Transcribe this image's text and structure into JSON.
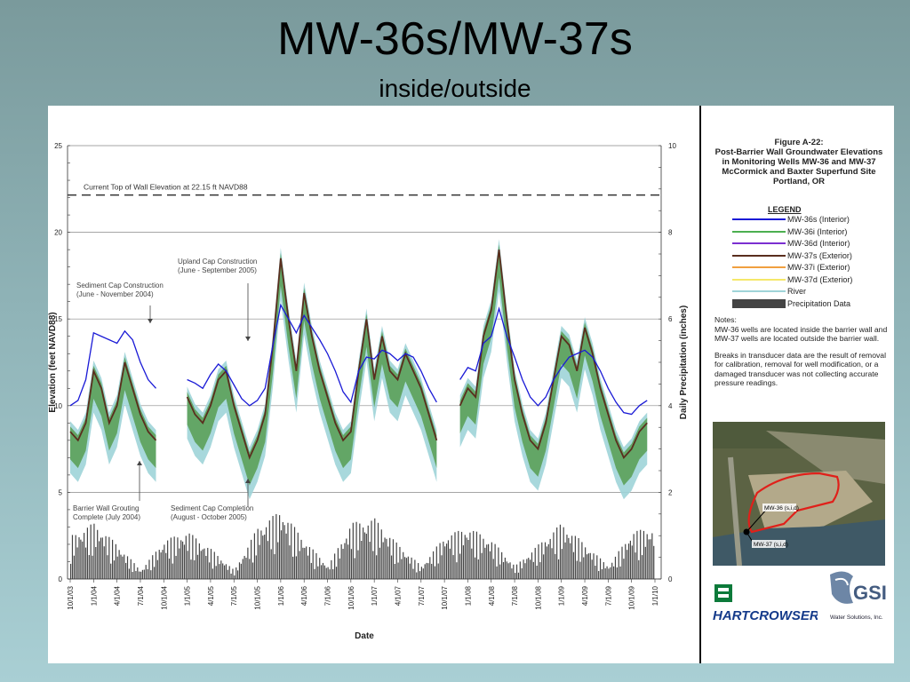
{
  "slide": {
    "title": "MW-36s/MW-37s",
    "subtitle": "inside/outside"
  },
  "figure": {
    "title_lines": [
      "Figure A-22:",
      "Post-Barrier Wall Groundwater Elevations",
      "in Monitoring Wells MW-36 and MW-37",
      "McCormick and Baxter Superfund Site",
      "Portland, OR"
    ],
    "legend_title": "LEGEND",
    "legend": [
      {
        "label": "MW-36s (Interior)",
        "color": "#1a1ad6"
      },
      {
        "label": "MW-36i (Interior)",
        "color": "#4caf50"
      },
      {
        "label": "MW-36d  (Interior)",
        "color": "#7b2fd1"
      },
      {
        "label": "MW-37s (Exterior)",
        "color": "#5a2e1e"
      },
      {
        "label": "MW-37i (Exterior)",
        "color": "#f0a040"
      },
      {
        "label": "MW-37d (Exterior)",
        "color": "#f5e86a"
      },
      {
        "label": "River",
        "color": "#9fd4d8"
      },
      {
        "label": "Precipitation Data",
        "color": "#444444"
      }
    ],
    "notes_title": "Notes:",
    "notes": [
      "MW-36 wells are located inside the barrier wall and MW-37 wells are located outside the barrier wall.",
      "Breaks in transducer data are the result of removal for calibration, removal for well modification, or a damaged transducer was not collecting accurate pressure readings."
    ],
    "map_labels": {
      "mw36": "MW-36 (s,i,d)",
      "mw37": "MW-37 (s,i,d)"
    },
    "logos": {
      "hartcrowser": "HARTCROWSER",
      "gsi_name": "GSI",
      "gsi_tag": "Water Solutions, Inc."
    }
  },
  "chart_data": {
    "type": "line",
    "xlabel": "Date",
    "ylabel": "Elevation (feet NAVD88)",
    "y2label": "Daily Precipitation (inches)",
    "ylim": [
      0,
      25
    ],
    "y2lim": [
      0,
      10
    ],
    "yticks": [
      0,
      5,
      10,
      15,
      20,
      25
    ],
    "y2ticks": [
      0,
      2,
      4,
      6,
      8,
      10
    ],
    "x_tick_labels": [
      "10/1/03",
      "1/1/04",
      "4/1/04",
      "7/1/04",
      "10/1/04",
      "1/1/05",
      "4/1/05",
      "7/1/05",
      "10/1/05",
      "1/1/06",
      "4/1/06",
      "7/1/06",
      "10/1/06",
      "1/1/07",
      "4/1/07",
      "7/1/07",
      "10/1/07",
      "1/1/08",
      "4/1/08",
      "7/1/08",
      "10/1/08",
      "1/1/09",
      "4/1/09",
      "7/1/09",
      "10/1/09",
      "1/1/10"
    ],
    "grid": "horizontal",
    "reference_line": {
      "value": 22.15,
      "label": "Current Top of Wall Elevation at 22.15 ft NAVD88"
    },
    "annotations": [
      {
        "lines": [
          "Sediment Cap Construction",
          "(June - November 2004)"
        ]
      },
      {
        "lines": [
          "Upland Cap Construction",
          "(June - September 2005)"
        ]
      },
      {
        "lines": [
          "Barrier Wall Grouting",
          "Complete (July 2004)"
        ]
      },
      {
        "lines": [
          "Sediment Cap Completion",
          "(August - October 2005)"
        ]
      }
    ],
    "series": [
      {
        "name": "MW-36s (Interior)",
        "x": [
          "10/1/03",
          "11/1/03",
          "12/1/03",
          "1/1/04",
          "2/1/04",
          "3/1/04",
          "4/1/04",
          "5/1/04",
          "6/1/04",
          "7/1/04",
          "8/1/04",
          "9/1/04",
          "10/1/04",
          "11/1/04",
          "12/1/04",
          "1/1/05",
          "2/1/05",
          "3/1/05",
          "4/1/05",
          "5/1/05",
          "6/1/05",
          "7/1/05",
          "8/1/05",
          "9/1/05",
          "10/1/05",
          "11/1/05",
          "12/1/05",
          "1/1/06",
          "2/1/06",
          "3/1/06",
          "4/1/06",
          "5/1/06",
          "6/1/06",
          "7/1/06",
          "8/1/06",
          "9/1/06",
          "10/1/06",
          "11/1/06",
          "12/1/06",
          "1/1/07",
          "2/1/07",
          "3/1/07",
          "4/1/07",
          "5/1/07",
          "6/1/07",
          "7/1/07",
          "8/1/07",
          "9/1/07",
          "10/1/07",
          "11/1/07",
          "12/1/07",
          "1/1/08",
          "2/1/08",
          "3/1/08",
          "4/1/08",
          "5/1/08",
          "6/1/08",
          "7/1/08",
          "8/1/08",
          "9/1/08",
          "10/1/08",
          "11/1/08",
          "12/1/08",
          "1/1/09",
          "2/1/09",
          "3/1/09",
          "4/1/09",
          "5/1/09",
          "6/1/09",
          "7/1/09",
          "8/1/09",
          "9/1/09",
          "10/1/09",
          "11/1/09",
          "12/1/09",
          "1/1/10"
        ],
        "values": [
          10,
          10.3,
          11.5,
          14.2,
          14.0,
          13.8,
          13.6,
          14.3,
          13.8,
          12.5,
          11.5,
          11.0,
          null,
          null,
          null,
          11.5,
          11.3,
          11.0,
          11.8,
          12.4,
          12.0,
          11.2,
          10.4,
          10.0,
          10.3,
          11.0,
          13.5,
          15.8,
          15.0,
          14.2,
          15.2,
          14.5,
          13.8,
          13.0,
          12.0,
          10.8,
          10.2,
          12.0,
          12.8,
          12.7,
          13.2,
          13.0,
          12.6,
          13.0,
          12.8,
          12.0,
          11.0,
          10.2,
          null,
          null,
          11.5,
          12.2,
          12.0,
          13.6,
          14.0,
          15.6,
          14.0,
          12.8,
          11.5,
          10.5,
          10.0,
          10.5,
          11.5,
          12.2,
          12.8,
          13.0,
          13.2,
          12.8,
          12.0,
          11.0,
          10.2,
          9.6,
          9.5,
          10.0,
          10.3,
          null
        ]
      },
      {
        "name": "MW-37s (Exterior)",
        "x": [
          "10/1/03",
          "11/1/03",
          "12/1/03",
          "1/1/04",
          "2/1/04",
          "3/1/04",
          "4/1/04",
          "5/1/04",
          "6/1/04",
          "7/1/04",
          "8/1/04",
          "9/1/04",
          "10/1/04",
          "11/1/04",
          "12/1/04",
          "1/1/05",
          "2/1/05",
          "3/1/05",
          "4/1/05",
          "5/1/05",
          "6/1/05",
          "7/1/05",
          "8/1/05",
          "9/1/05",
          "10/1/05",
          "11/1/05",
          "12/1/05",
          "1/1/06",
          "2/1/06",
          "3/1/06",
          "4/1/06",
          "5/1/06",
          "6/1/06",
          "7/1/06",
          "8/1/06",
          "9/1/06",
          "10/1/06",
          "11/1/06",
          "12/1/06",
          "1/1/07",
          "2/1/07",
          "3/1/07",
          "4/1/07",
          "5/1/07",
          "6/1/07",
          "7/1/07",
          "8/1/07",
          "9/1/07",
          "10/1/07",
          "11/1/07",
          "12/1/07",
          "1/1/08",
          "2/1/08",
          "3/1/08",
          "4/1/08",
          "5/1/08",
          "6/1/08",
          "7/1/08",
          "8/1/08",
          "9/1/08",
          "10/1/08",
          "11/1/08",
          "12/1/08",
          "1/1/09",
          "2/1/09",
          "3/1/09",
          "4/1/09",
          "5/1/09",
          "6/1/09",
          "7/1/09",
          "8/1/09",
          "9/1/09",
          "10/1/09",
          "11/1/09",
          "12/1/09",
          "1/1/10"
        ],
        "values": [
          8.5,
          8.0,
          9.0,
          12.0,
          11.0,
          9.0,
          10.0,
          12.5,
          11.0,
          9.5,
          8.5,
          8.0,
          null,
          null,
          null,
          10.5,
          9.5,
          9.0,
          10.0,
          11.5,
          12.0,
          10.0,
          8.5,
          7.0,
          8.0,
          9.5,
          13.5,
          18.5,
          15.0,
          12.0,
          16.5,
          14.0,
          12.0,
          10.5,
          9.0,
          8.0,
          8.5,
          12.0,
          15.0,
          11.5,
          14.0,
          12.0,
          11.5,
          13.0,
          12.0,
          11.0,
          9.5,
          8.0,
          null,
          null,
          10.0,
          11.0,
          10.5,
          14.0,
          15.5,
          19.0,
          15.0,
          11.5,
          9.5,
          8.0,
          7.5,
          9.0,
          11.5,
          14.0,
          13.5,
          12.0,
          14.5,
          13.0,
          11.0,
          9.5,
          8.0,
          7.0,
          7.5,
          8.5,
          9.0,
          null
        ]
      },
      {
        "name": "Precipitation Data",
        "x": [
          "10/1/03",
          "1/1/04",
          "4/1/04",
          "7/1/04",
          "10/1/04",
          "1/1/05",
          "4/1/05",
          "7/1/05",
          "10/1/05",
          "1/1/06",
          "4/1/06",
          "7/1/06",
          "10/1/06",
          "1/1/07",
          "4/1/07",
          "7/1/07",
          "10/1/07",
          "1/1/08",
          "4/1/08",
          "7/1/08",
          "10/1/08",
          "1/1/09",
          "4/1/09",
          "7/1/09",
          "10/1/09",
          "1/1/10"
        ],
        "values": [
          1.0,
          1.3,
          0.8,
          0.2,
          0.9,
          1.1,
          0.7,
          0.2,
          1.2,
          1.6,
          0.9,
          0.3,
          1.3,
          1.4,
          0.8,
          0.3,
          1.0,
          1.2,
          0.9,
          0.3,
          0.8,
          1.3,
          0.8,
          0.3,
          1.1,
          1.2
        ]
      }
    ]
  }
}
